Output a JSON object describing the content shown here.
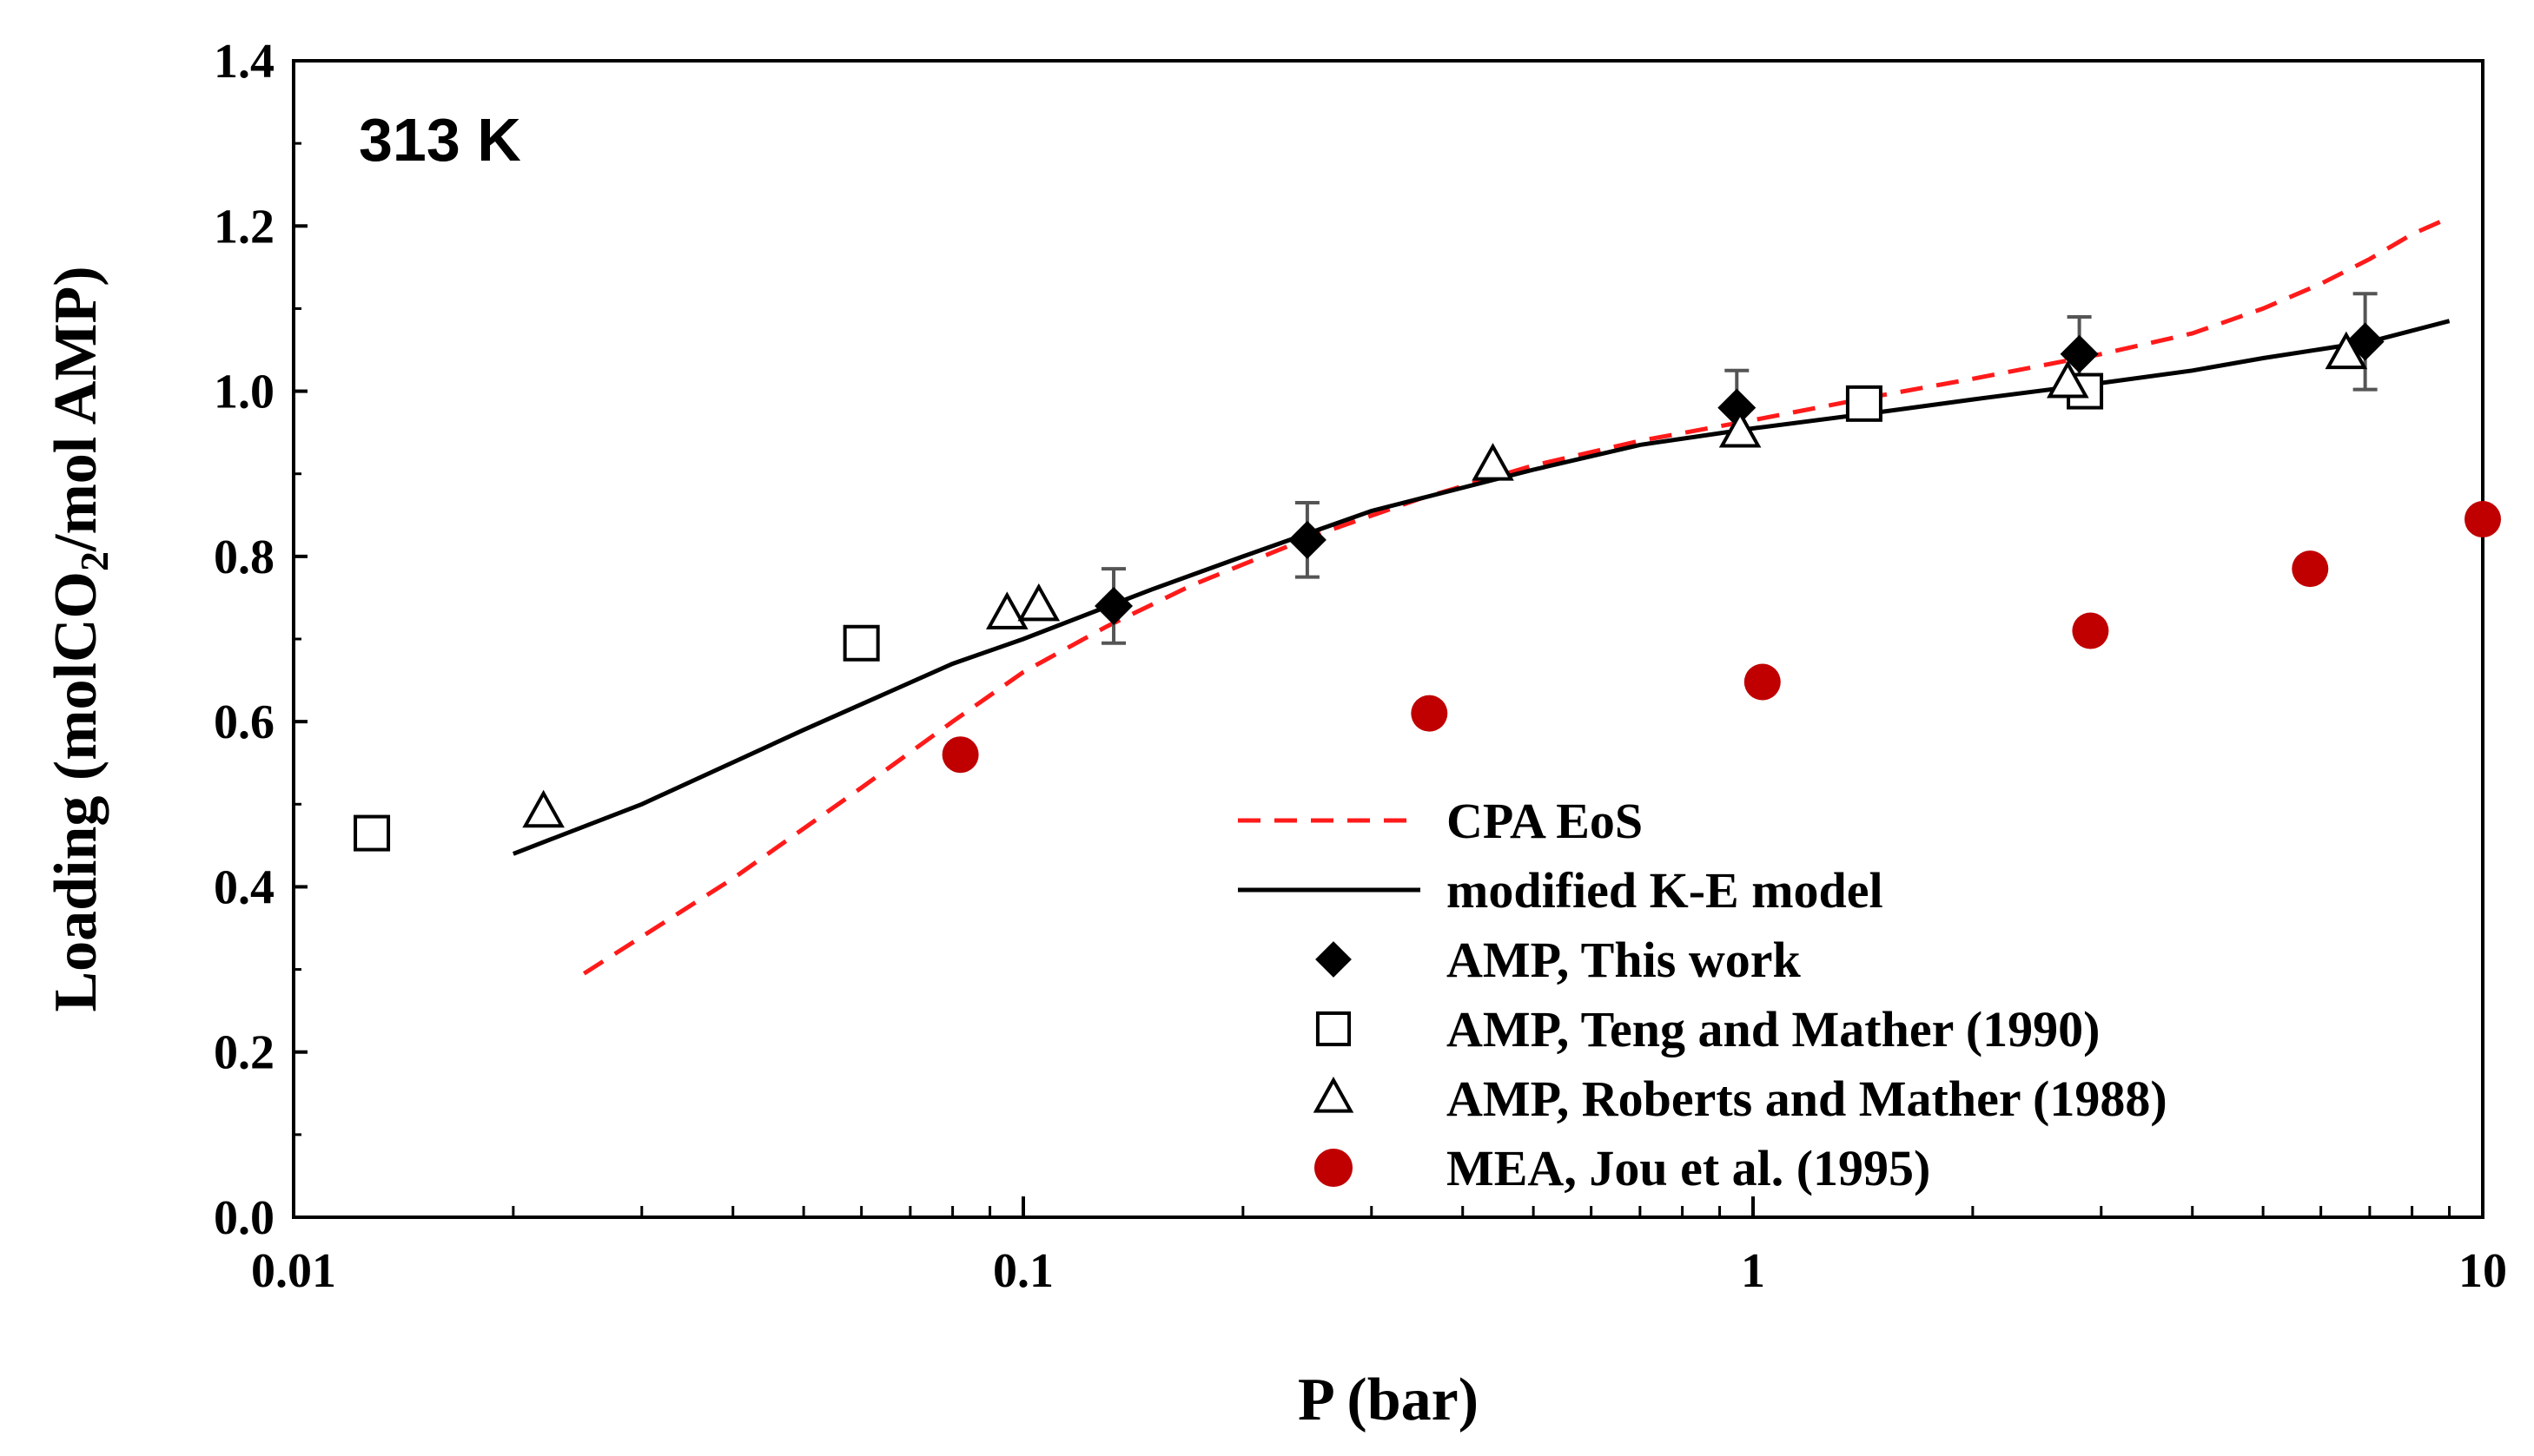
{
  "chart_data": {
    "type": "scatter",
    "annotation": "313 K",
    "xlabel": "P (bar)",
    "ylabel": {
      "prefix": "Loading (molCO",
      "subscript": "2",
      "suffix": "/mol AMP)"
    },
    "x_scale": "log",
    "xlim": [
      0.01,
      10
    ],
    "ylim": [
      0.0,
      1.4
    ],
    "x_ticks": [
      0.01,
      0.1,
      1,
      10
    ],
    "x_tick_labels": [
      "0.01",
      "0.1",
      "1",
      "10"
    ],
    "y_ticks": [
      0.0,
      0.2,
      0.4,
      0.6,
      0.8,
      1.0,
      1.2,
      1.4
    ],
    "y_tick_labels": [
      "0.0",
      "0.2",
      "0.4",
      "0.6",
      "0.8",
      "1.0",
      "1.2",
      "1.4"
    ],
    "legend_position": "bottom-right",
    "colors": {
      "red": "#cc0000",
      "black": "#000000"
    },
    "series": [
      {
        "name": "CPA EoS",
        "kind": "line",
        "style": "dashed",
        "color": "#ff1a1a",
        "x": [
          0.025,
          0.04,
          0.06,
          0.08,
          0.1,
          0.13,
          0.17,
          0.25,
          0.35,
          0.5,
          0.7,
          1.0,
          1.5,
          2.0,
          3.0,
          4.0,
          5.0,
          6.0,
          7.0,
          8.0,
          9.0
        ],
        "y": [
          0.295,
          0.41,
          0.52,
          0.6,
          0.66,
          0.715,
          0.765,
          0.825,
          0.87,
          0.91,
          0.94,
          0.965,
          0.995,
          1.015,
          1.045,
          1.07,
          1.1,
          1.13,
          1.16,
          1.19,
          1.21
        ]
      },
      {
        "name": "modified K-E model",
        "kind": "line",
        "style": "solid",
        "color": "#000000",
        "x": [
          0.02,
          0.03,
          0.05,
          0.08,
          0.1,
          0.15,
          0.2,
          0.3,
          0.5,
          0.7,
          1.0,
          1.5,
          2.0,
          3.0,
          4.0,
          5.0,
          7.0,
          9.0
        ],
        "y": [
          0.44,
          0.5,
          0.59,
          0.67,
          0.7,
          0.76,
          0.8,
          0.855,
          0.905,
          0.935,
          0.955,
          0.975,
          0.99,
          1.01,
          1.025,
          1.04,
          1.06,
          1.085
        ]
      },
      {
        "name": "AMP, This work",
        "kind": "marker",
        "marker": "diamond-filled",
        "color": "#000000",
        "x": [
          0.133,
          0.245,
          0.95,
          2.8,
          6.9
        ],
        "y": [
          0.74,
          0.82,
          0.98,
          1.045,
          1.06
        ],
        "error": [
          0.045,
          0.045,
          0.045,
          0.045,
          0.058
        ]
      },
      {
        "name": "AMP, Teng and Mather (1990)",
        "kind": "marker",
        "marker": "square-open",
        "color": "#000000",
        "x": [
          0.0128,
          0.06,
          1.42,
          2.85
        ],
        "y": [
          0.465,
          0.695,
          0.985,
          1.0
        ]
      },
      {
        "name": "AMP, Roberts and Mather (1988)",
        "kind": "marker",
        "marker": "triangle-open",
        "color": "#000000",
        "x": [
          0.022,
          0.095,
          0.105,
          0.44,
          0.96,
          2.7,
          6.5
        ],
        "y": [
          0.49,
          0.73,
          0.74,
          0.91,
          0.95,
          1.01,
          1.045
        ]
      },
      {
        "name": "MEA, Jou et al. (1995)",
        "kind": "marker",
        "marker": "circle-filled",
        "color": "#c00000",
        "x": [
          0.082,
          0.36,
          1.03,
          2.9,
          5.8,
          10.0
        ],
        "y": [
          0.56,
          0.61,
          0.648,
          0.71,
          0.785,
          0.845
        ]
      }
    ]
  }
}
